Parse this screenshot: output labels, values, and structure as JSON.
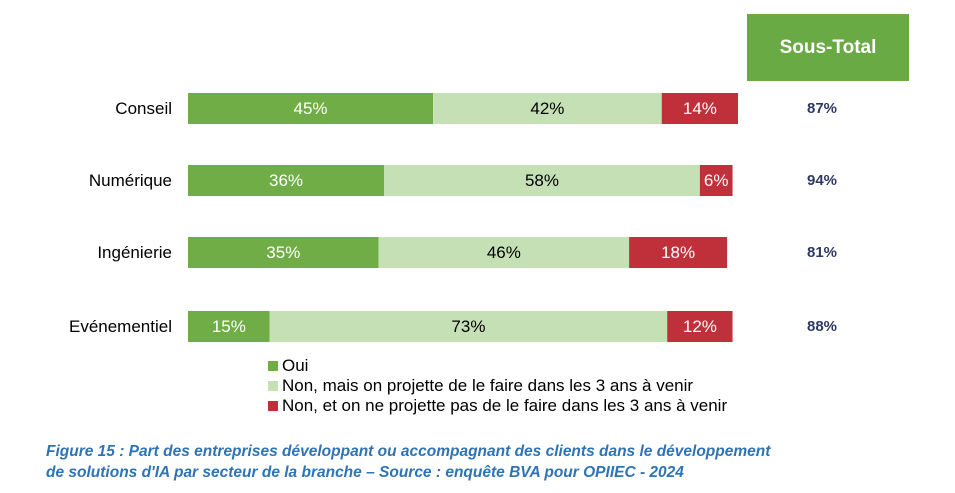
{
  "subtotal_header": "Sous-Total",
  "colors": {
    "oui": "#70ad47",
    "non_projet": "#c5e0b4",
    "non": "#c0303a",
    "subtotal_text": "#2f3a63",
    "header_bg": "#6aaa45",
    "caption": "#2e74b5"
  },
  "chart_data": {
    "type": "bar",
    "orientation": "horizontal",
    "stacked": true,
    "categories": [
      "Conseil",
      "Numérique",
      "Ingénierie",
      "Evénementiel"
    ],
    "series": [
      {
        "name": "Oui",
        "values": [
          45,
          36,
          35,
          15
        ],
        "labels": [
          "45%",
          "36%",
          "35%",
          "15%"
        ]
      },
      {
        "name": "Non, mais on projette de le faire dans les 3 ans à venir",
        "values": [
          42,
          58,
          46,
          73
        ],
        "labels": [
          "42%",
          "58%",
          "46%",
          "73%"
        ]
      },
      {
        "name": "Non, et on ne projette pas de le faire dans les 3 ans à venir",
        "values": [
          14,
          6,
          18,
          12
        ],
        "labels": [
          "14%",
          "6%",
          "18%",
          "12%"
        ]
      }
    ],
    "subtotals": [
      "87%",
      "94%",
      "81%",
      "88%"
    ],
    "xlim": [
      0,
      101
    ],
    "legend_position": "bottom"
  },
  "caption": {
    "line1": "Figure 15 : Part des entreprises développant ou accompagnant des clients dans le développement",
    "line2": "de solutions d'IA par secteur de la branche – Source : enquête BVA pour OPIIEC - 2024"
  }
}
